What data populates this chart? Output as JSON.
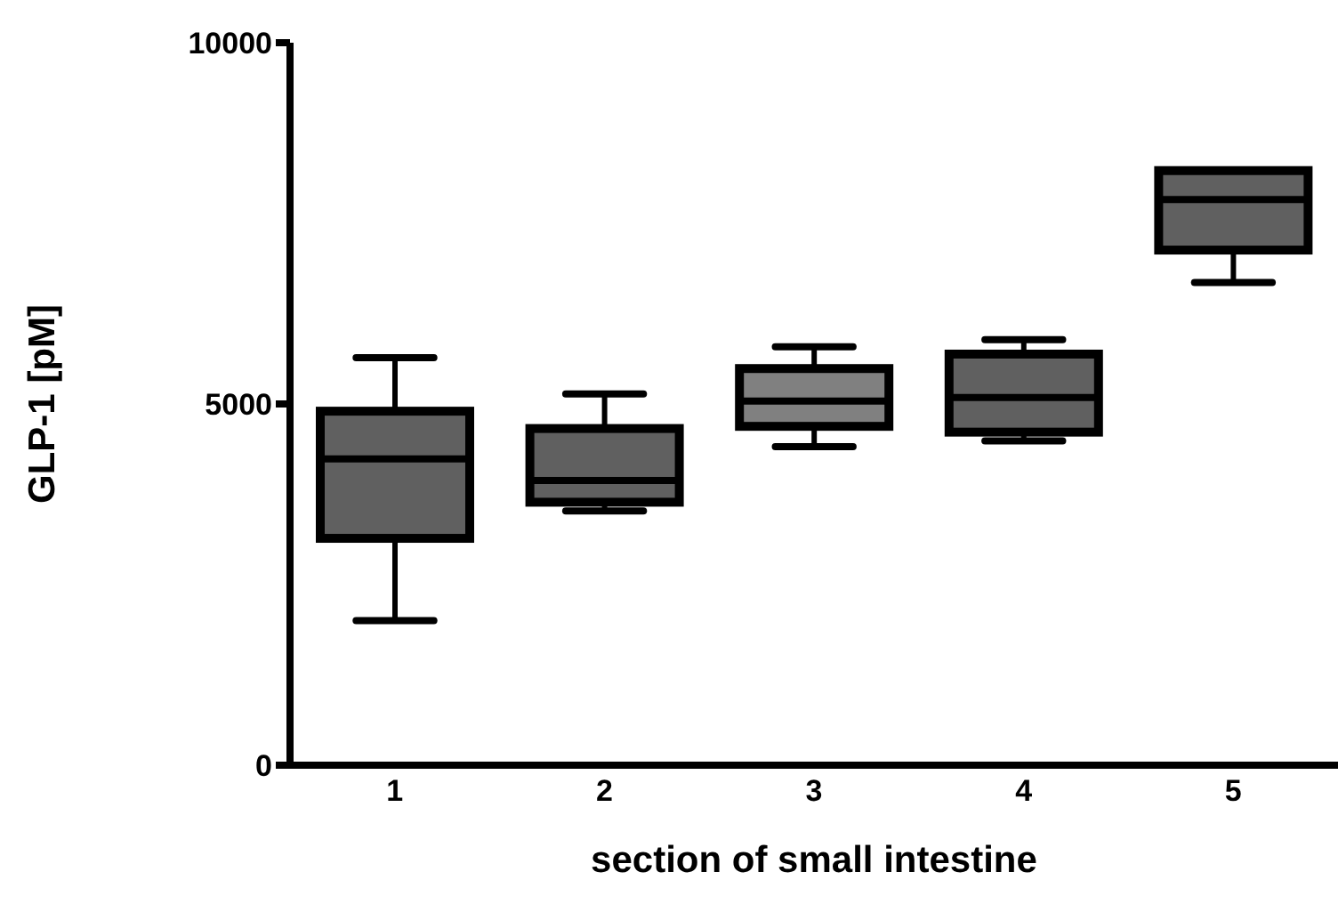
{
  "chart_data": {
    "type": "box",
    "xlabel": "section of small intestine",
    "ylabel": "GLP-1 [pM]",
    "categories": [
      "1",
      "2",
      "3",
      "4",
      "5"
    ],
    "boxes": [
      {
        "low": 2000,
        "q1": 3140,
        "median": 4240,
        "q3": 4900,
        "high": 5640
      },
      {
        "low": 3520,
        "q1": 3640,
        "median": 3940,
        "q3": 4660,
        "high": 5140
      },
      {
        "low": 4410,
        "q1": 4690,
        "median": 5040,
        "q3": 5490,
        "high": 5790
      },
      {
        "low": 4490,
        "q1": 4610,
        "median": 5090,
        "q3": 5690,
        "high": 5890
      },
      {
        "low": 6680,
        "q1": 7130,
        "median": 7830,
        "q3": 8230,
        "high": 8230
      }
    ],
    "colors": [
      "#606060",
      "#606060",
      "#808080",
      "#606060",
      "#606060"
    ],
    "ylim": [
      0,
      10000
    ],
    "yticks": [
      0,
      5000,
      10000
    ],
    "grid": false,
    "legend": false
  }
}
